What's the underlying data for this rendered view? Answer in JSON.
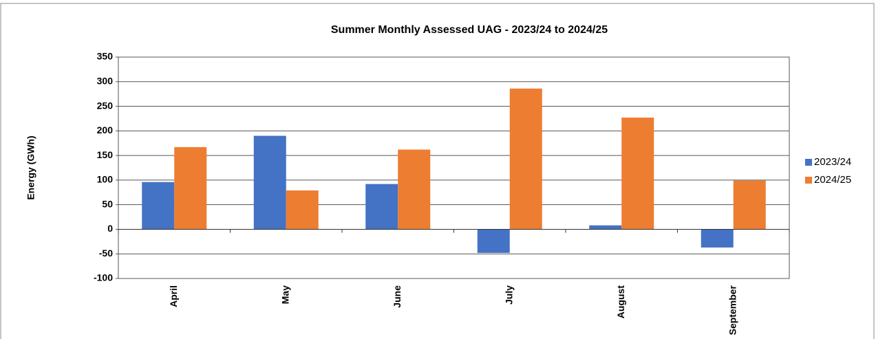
{
  "chart_data": {
    "type": "bar",
    "title": "Summer Monthly Assessed UAG - 2023/24 to 2024/25",
    "y_label": "Energy (GWh)",
    "categories": [
      "April",
      "May",
      "June",
      "July",
      "August",
      "September"
    ],
    "series": [
      {
        "name": "2023/24",
        "color": "#4472c4",
        "values": [
          96,
          190,
          92,
          -48,
          8,
          -37
        ]
      },
      {
        "name": "2024/25",
        "color": "#ed7d31",
        "values": [
          167,
          79,
          162,
          286,
          227,
          99
        ]
      }
    ],
    "ylim": [
      -100,
      350
    ],
    "yticks": [
      -100,
      -50,
      0,
      50,
      100,
      150,
      200,
      250,
      300,
      350
    ],
    "grid": true,
    "legend": "right"
  }
}
